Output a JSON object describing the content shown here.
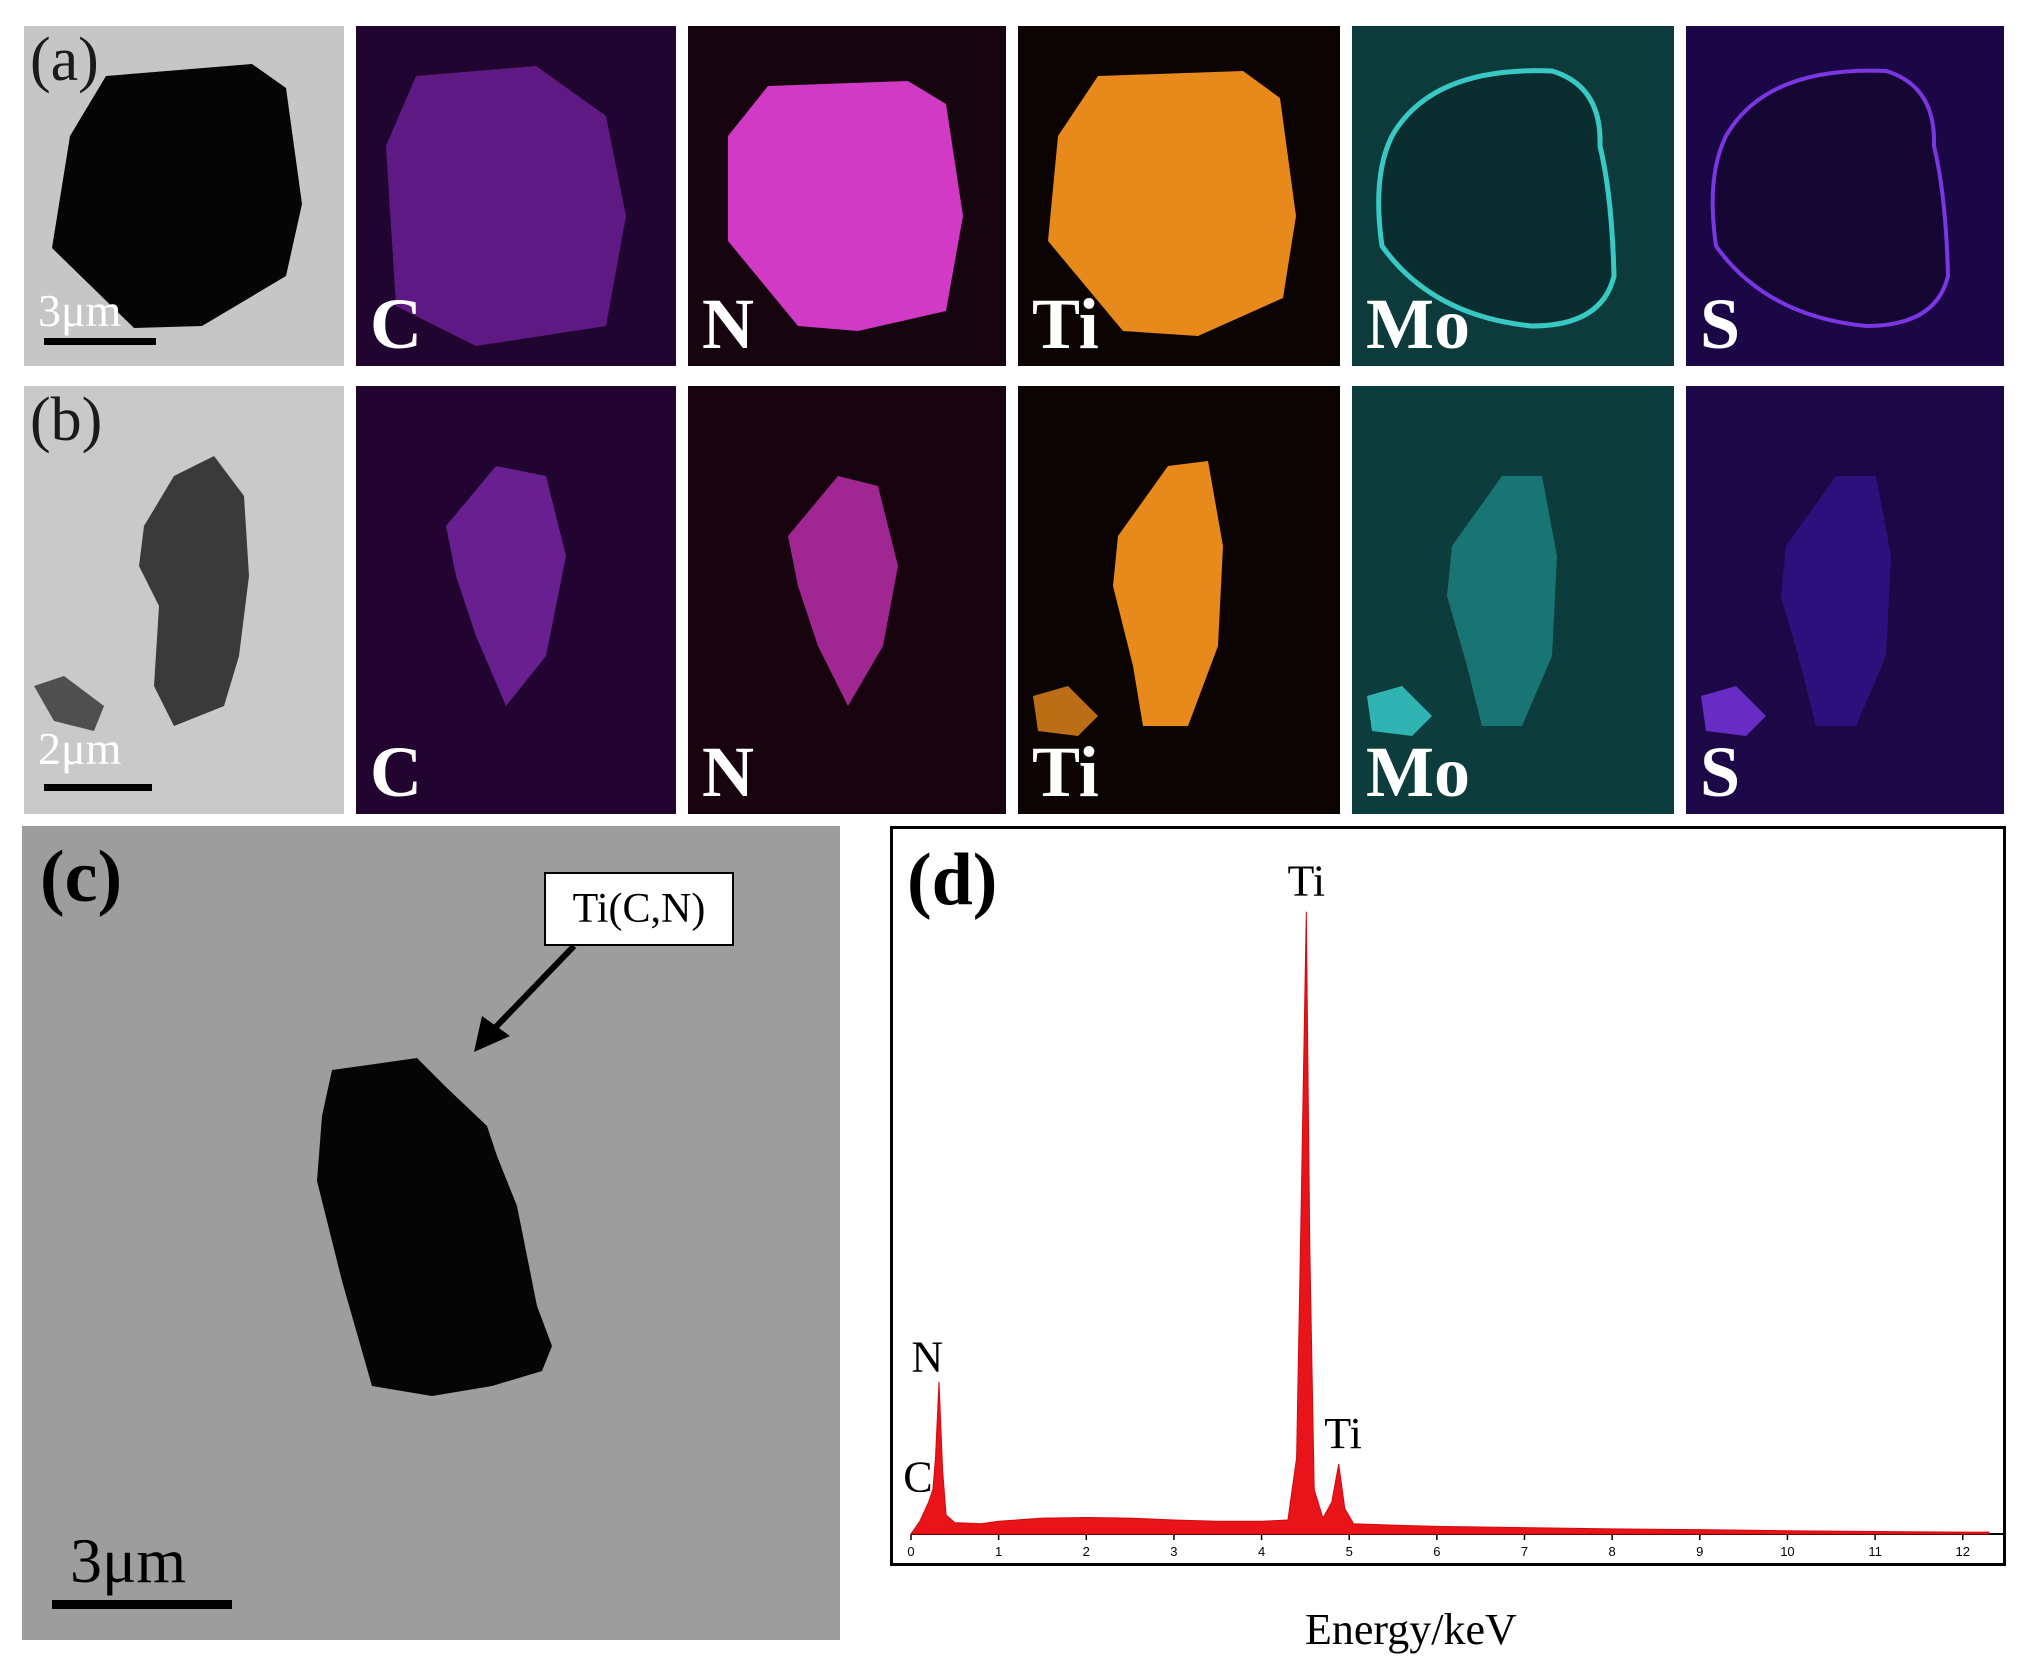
{
  "row_a": {
    "tag": "(a)",
    "scale": "3μm",
    "maps": [
      {
        "element": "C",
        "color": "#9a33d6"
      },
      {
        "element": "N",
        "color": "#e83fd2"
      },
      {
        "element": "Ti",
        "color": "#f2921a"
      },
      {
        "element": "Mo",
        "color": "#2fc7c3"
      },
      {
        "element": "S",
        "color": "#6a22d8"
      }
    ]
  },
  "row_b": {
    "tag": "(b)",
    "scale": "2μm",
    "maps": [
      {
        "element": "C",
        "color": "#9a33d6"
      },
      {
        "element": "N",
        "color": "#e83fd2"
      },
      {
        "element": "Ti",
        "color": "#f2921a"
      },
      {
        "element": "Mo",
        "color": "#2fc7c3"
      },
      {
        "element": "S",
        "color": "#6a22d8"
      }
    ]
  },
  "panel_c": {
    "tag": "(c)",
    "callout": "Ti(C,N)",
    "scale": "3μm"
  },
  "panel_d": {
    "tag": "(d)",
    "xlabel": "Energy/keV",
    "peak_labels": {
      "ti_main": "Ti",
      "ti_minor": "Ti",
      "n": "N",
      "c": "C"
    },
    "x_ticks": [
      "0",
      "1",
      "2",
      "3",
      "4",
      "5",
      "6",
      "7",
      "8",
      "9",
      "10",
      "11",
      "12"
    ]
  },
  "chart_data": {
    "type": "area",
    "title": "",
    "xlabel": "Energy/keV",
    "ylabel": "",
    "xlim": [
      0,
      12.3
    ],
    "ylim": [
      0,
      1.0
    ],
    "color": "#e8141a",
    "x": [
      0.0,
      0.1,
      0.2,
      0.25,
      0.28,
      0.32,
      0.36,
      0.4,
      0.5,
      0.8,
      1.0,
      1.5,
      2.0,
      2.5,
      3.0,
      3.5,
      4.0,
      4.3,
      4.4,
      4.45,
      4.51,
      4.55,
      4.6,
      4.7,
      4.8,
      4.88,
      4.95,
      5.05,
      5.5,
      6.0,
      7.0,
      8.0,
      9.0,
      10.0,
      11.0,
      12.0,
      12.3
    ],
    "y": [
      0.0,
      0.02,
      0.05,
      0.07,
      0.12,
      0.24,
      0.1,
      0.03,
      0.018,
      0.016,
      0.02,
      0.025,
      0.026,
      0.025,
      0.022,
      0.02,
      0.02,
      0.022,
      0.12,
      0.5,
      0.98,
      0.45,
      0.07,
      0.025,
      0.05,
      0.11,
      0.04,
      0.016,
      0.014,
      0.012,
      0.01,
      0.008,
      0.007,
      0.005,
      0.004,
      0.003,
      0.003
    ],
    "annotations": [
      {
        "text": "Ti",
        "x": 4.51,
        "y": 0.98
      },
      {
        "text": "Ti",
        "x": 4.93,
        "y": 0.11
      },
      {
        "text": "N",
        "x": 0.39,
        "y": 0.24
      },
      {
        "text": "C",
        "x": 0.27,
        "y": 0.07
      }
    ]
  }
}
